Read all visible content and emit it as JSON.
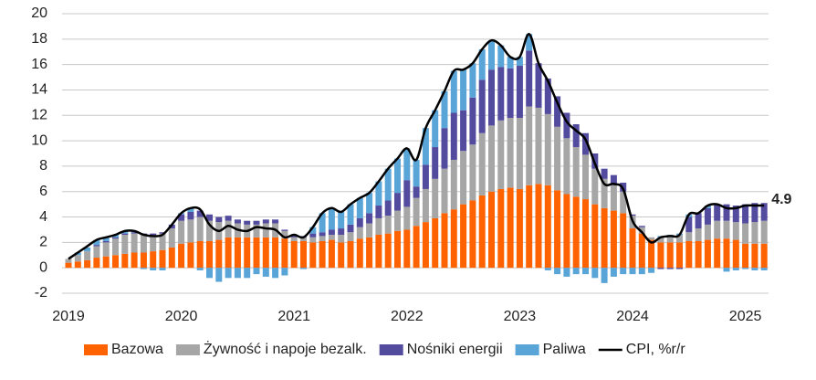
{
  "chart_data": {
    "type": "bar",
    "stacked": true,
    "categories": [
      "2019",
      null,
      null,
      null,
      null,
      null,
      null,
      null,
      null,
      null,
      null,
      null,
      "2020",
      null,
      null,
      null,
      null,
      null,
      null,
      null,
      null,
      null,
      null,
      null,
      "2021",
      null,
      null,
      null,
      null,
      null,
      null,
      null,
      null,
      null,
      null,
      null,
      "2022",
      null,
      null,
      null,
      null,
      null,
      null,
      null,
      null,
      null,
      null,
      null,
      "2023",
      null,
      null,
      null,
      null,
      null,
      null,
      null,
      null,
      null,
      null,
      null,
      "2024",
      null,
      null,
      null,
      null,
      null,
      null,
      null,
      null,
      null,
      null,
      null,
      "2025",
      null,
      null
    ],
    "ylim": [
      -2,
      20
    ],
    "yticks": [
      -2,
      0,
      2,
      4,
      6,
      8,
      10,
      12,
      14,
      16,
      18,
      20
    ],
    "grid": true,
    "legend": "bottom",
    "series": [
      {
        "name": "Bazowa",
        "color": "#ff6200",
        "values": [
          0.4,
          0.5,
          0.6,
          0.8,
          0.9,
          1.0,
          1.1,
          1.2,
          1.2,
          1.3,
          1.4,
          1.6,
          1.9,
          2.0,
          2.1,
          2.1,
          2.2,
          2.4,
          2.4,
          2.4,
          2.4,
          2.4,
          2.4,
          2.3,
          2.1,
          2.1,
          2.0,
          2.1,
          2.2,
          2.0,
          2.1,
          2.3,
          2.4,
          2.6,
          2.7,
          2.9,
          3.0,
          3.3,
          3.6,
          3.9,
          4.3,
          4.6,
          5.0,
          5.3,
          5.7,
          6.0,
          6.2,
          6.3,
          6.2,
          6.5,
          6.6,
          6.5,
          6.1,
          5.8,
          5.6,
          5.4,
          5.0,
          4.7,
          4.5,
          4.3,
          3.1,
          2.7,
          2.2,
          2.0,
          2.0,
          2.0,
          2.1,
          2.1,
          2.2,
          2.3,
          2.3,
          2.2,
          1.9,
          1.9,
          1.9
        ]
      },
      {
        "name": "Żywność i napoje bezalk.",
        "color": "#a6a6a6",
        "values": [
          0.3,
          0.5,
          0.7,
          0.9,
          1.1,
          1.3,
          1.5,
          1.5,
          1.4,
          1.3,
          1.3,
          1.5,
          1.8,
          1.8,
          1.9,
          1.6,
          1.4,
          1.3,
          1.1,
          1.0,
          1.0,
          1.1,
          1.1,
          0.6,
          0.3,
          0.3,
          0.4,
          0.4,
          0.4,
          0.6,
          0.7,
          0.9,
          1.1,
          1.3,
          1.4,
          1.6,
          1.8,
          2.2,
          2.6,
          3.1,
          3.5,
          3.9,
          4.2,
          4.4,
          4.9,
          5.2,
          5.4,
          5.5,
          5.6,
          6.2,
          6.0,
          5.6,
          5.0,
          4.4,
          3.9,
          3.5,
          2.8,
          2.3,
          2.0,
          1.7,
          1.0,
          0.5,
          0.2,
          0.4,
          0.5,
          0.6,
          0.7,
          1.0,
          1.2,
          1.4,
          1.4,
          1.4,
          1.6,
          1.7,
          1.8
        ]
      },
      {
        "name": "Nośniki energii",
        "color": "#524b9e",
        "values": [
          0.0,
          0.0,
          0.0,
          0.1,
          0.1,
          0.1,
          0.1,
          0.1,
          0.1,
          0.1,
          0.1,
          0.3,
          0.5,
          0.6,
          0.5,
          0.5,
          0.4,
          0.4,
          0.3,
          0.3,
          0.3,
          0.3,
          0.3,
          0.1,
          0.2,
          0.1,
          0.3,
          0.3,
          0.4,
          0.5,
          0.6,
          0.7,
          0.8,
          1.0,
          1.2,
          1.4,
          2.1,
          0.9,
          1.9,
          2.5,
          3.2,
          3.7,
          3.2,
          3.7,
          4.2,
          4.4,
          4.2,
          3.9,
          4.1,
          4.4,
          3.5,
          2.8,
          2.4,
          2.0,
          1.8,
          1.7,
          1.2,
          0.8,
          0.8,
          0.7,
          0.1,
          0.1,
          0.0,
          -0.1,
          -0.1,
          -0.1,
          1.2,
          1.2,
          1.3,
          1.3,
          1.3,
          1.3,
          1.5,
          1.5,
          1.4
        ]
      },
      {
        "name": "Paliwa",
        "color": "#5aa5d8",
        "values": [
          0.0,
          0.2,
          0.3,
          0.4,
          0.3,
          0.2,
          0.2,
          0.1,
          -0.1,
          -0.2,
          -0.2,
          0.0,
          0.1,
          0.3,
          -0.2,
          -0.8,
          -1.1,
          -0.8,
          -0.8,
          -0.8,
          -0.5,
          -0.7,
          -0.8,
          -0.6,
          0.0,
          -0.1,
          0.5,
          1.5,
          1.7,
          1.3,
          1.6,
          1.6,
          1.6,
          1.9,
          2.5,
          2.7,
          2.5,
          2.1,
          2.9,
          2.9,
          2.9,
          3.3,
          3.2,
          2.7,
          2.4,
          2.3,
          1.7,
          0.9,
          0.7,
          1.3,
          0.0,
          -0.2,
          -0.5,
          -0.7,
          -0.5,
          -0.5,
          -0.8,
          -1.2,
          -0.7,
          -0.5,
          -0.5,
          -0.5,
          -0.4,
          0.1,
          0.1,
          0.1,
          0.2,
          0.0,
          0.2,
          0.0,
          -0.3,
          -0.2,
          -0.1,
          -0.2,
          -0.2
        ]
      },
      {
        "name": "CPI, %r/r",
        "color": "#000000",
        "type": "line",
        "values": [
          0.7,
          1.2,
          1.7,
          2.2,
          2.4,
          2.6,
          2.9,
          2.9,
          2.6,
          2.5,
          2.6,
          3.4,
          4.3,
          4.7,
          4.6,
          3.4,
          2.9,
          3.3,
          3.0,
          2.9,
          3.2,
          3.1,
          3.0,
          2.4,
          2.6,
          2.4,
          3.2,
          4.3,
          4.7,
          4.4,
          5.0,
          5.5,
          5.9,
          6.8,
          7.8,
          8.6,
          9.4,
          8.5,
          11.0,
          12.4,
          13.9,
          15.5,
          15.6,
          16.1,
          17.2,
          17.9,
          17.5,
          16.6,
          16.6,
          18.4,
          16.1,
          14.7,
          13.0,
          11.5,
          10.8,
          10.1,
          8.2,
          6.6,
          6.6,
          6.2,
          3.7,
          2.8,
          2.0,
          2.4,
          2.5,
          2.6,
          4.2,
          4.3,
          4.9,
          5.0,
          4.7,
          4.7,
          4.9,
          4.9,
          4.9
        ]
      }
    ]
  }
}
